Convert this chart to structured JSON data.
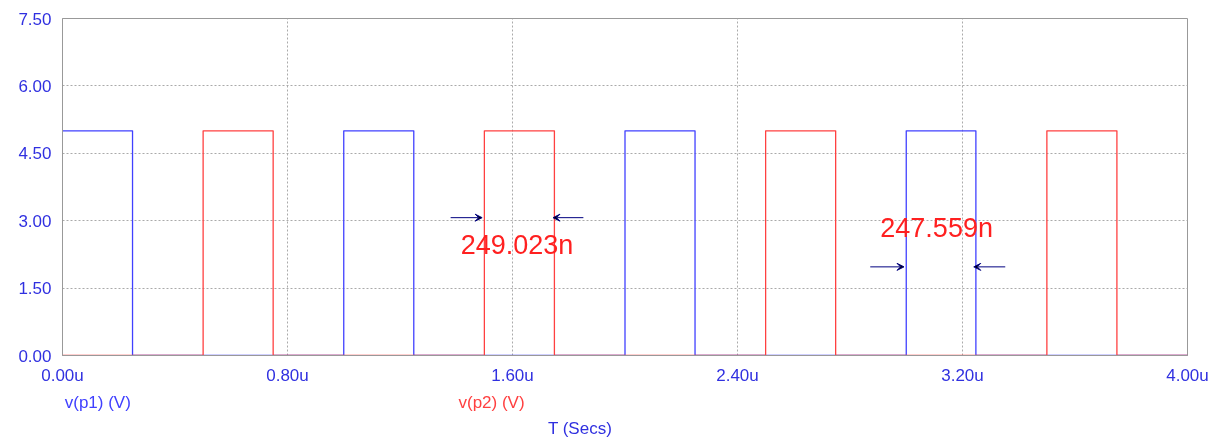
{
  "chart_data": {
    "type": "line",
    "xlabel": "T (Secs)",
    "series": [
      {
        "name": "v(p1) (V)",
        "color": "#4040ff",
        "x": [
          0,
          0.249,
          0.249,
          1.0,
          1.0,
          1.249,
          1.249,
          2.0,
          2.0,
          2.249,
          2.249,
          3.0,
          3.0,
          3.2476,
          3.2476,
          4.0
        ],
        "values": [
          5,
          5,
          0,
          0,
          5,
          5,
          0,
          0,
          5,
          5,
          0,
          0,
          5,
          5,
          0,
          0
        ]
      },
      {
        "name": "v(p2) (V)",
        "color": "#ff4040",
        "x": [
          0,
          0.5,
          0.5,
          0.749,
          0.749,
          1.5,
          1.5,
          1.749,
          1.749,
          2.5,
          2.5,
          2.749,
          2.749,
          3.5,
          3.5,
          3.749,
          3.749,
          4.0
        ],
        "values": [
          0,
          0,
          5,
          5,
          0,
          0,
          5,
          5,
          0,
          0,
          5,
          5,
          0,
          0,
          5,
          5,
          0,
          0
        ]
      }
    ],
    "xlim": [
      0,
      4
    ],
    "xticks": [
      {
        "value": 0,
        "label": "0.00u"
      },
      {
        "value": 0.8,
        "label": "0.80u"
      },
      {
        "value": 1.6,
        "label": "1.60u"
      },
      {
        "value": 2.4,
        "label": "2.40u"
      },
      {
        "value": 3.2,
        "label": "3.20u"
      },
      {
        "value": 4.0,
        "label": "4.00u"
      }
    ],
    "ylim": [
      0,
      7.5
    ],
    "yticks": [
      {
        "value": 0,
        "label": "0.00"
      },
      {
        "value": 1.5,
        "label": "1.50"
      },
      {
        "value": 3,
        "label": "3.00"
      },
      {
        "value": 4.5,
        "label": "4.50"
      },
      {
        "value": 6,
        "label": "6.00"
      },
      {
        "value": 7.5,
        "label": "7.50"
      }
    ],
    "annotations": [
      "249.023n",
      "247.559n"
    ],
    "grid": true,
    "line_style": "solid"
  }
}
